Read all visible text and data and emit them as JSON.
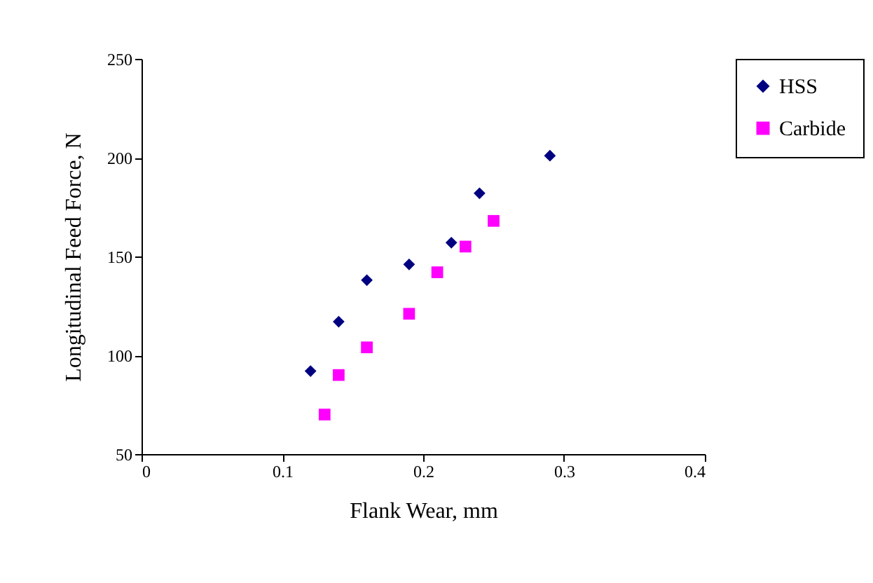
{
  "chart_data": {
    "type": "scatter",
    "xlabel": "Flank Wear, mm",
    "ylabel": "Longitudinal Feed Force, N",
    "xlim": [
      0,
      0.4
    ],
    "xticks": [
      0,
      0.1,
      0.2,
      0.3,
      0.4
    ],
    "ylim": [
      50,
      250
    ],
    "yticks": [
      50,
      100,
      150,
      200,
      250
    ],
    "grid": false,
    "legend": "right",
    "series": [
      {
        "name": "HSS",
        "color": "#000080",
        "marker": "diamond",
        "x": [
          0.12,
          0.14,
          0.16,
          0.19,
          0.22,
          0.24,
          0.29
        ],
        "values": [
          92,
          117,
          138,
          146,
          157,
          182,
          201
        ]
      },
      {
        "name": "Carbide",
        "color": "#ff00ff",
        "marker": "square",
        "x": [
          0.13,
          0.14,
          0.16,
          0.19,
          0.21,
          0.23,
          0.25
        ],
        "values": [
          70,
          90,
          104,
          121,
          142,
          155,
          168
        ]
      }
    ]
  }
}
